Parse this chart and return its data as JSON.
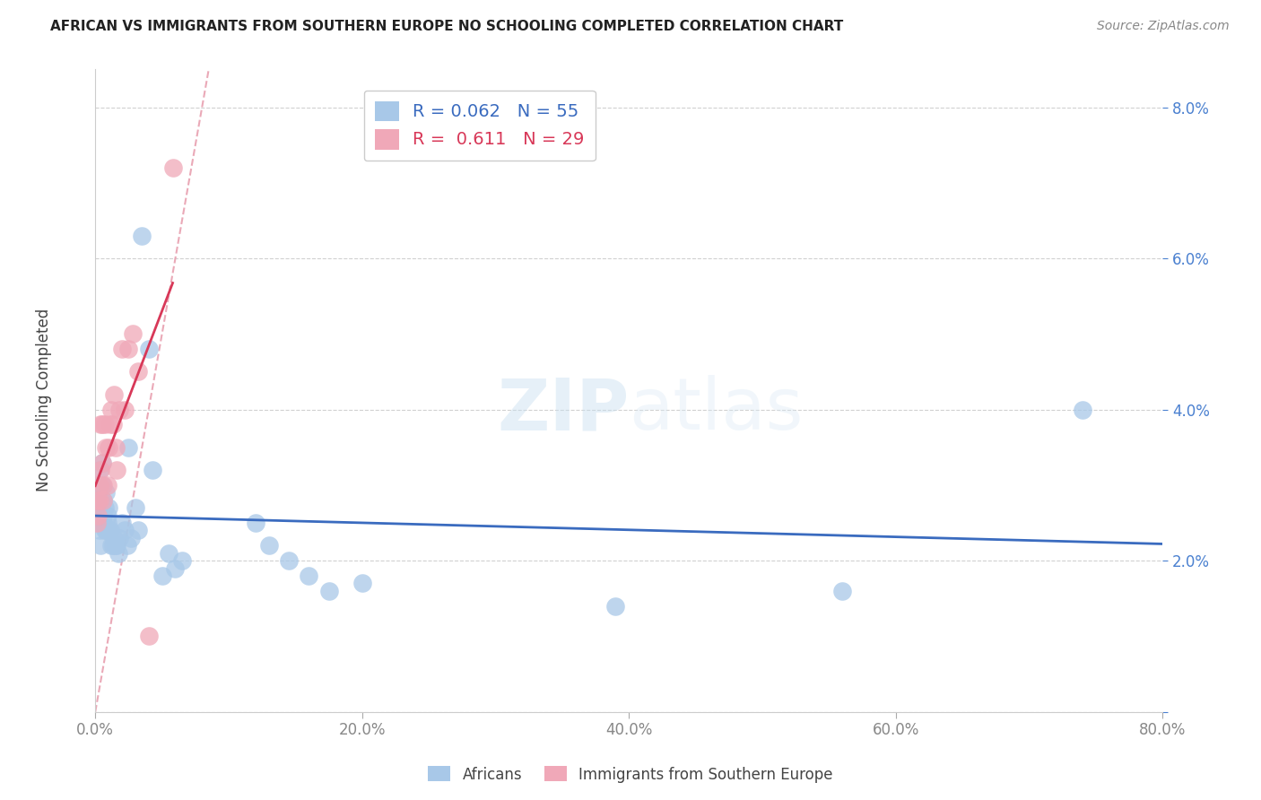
{
  "title": "AFRICAN VS IMMIGRANTS FROM SOUTHERN EUROPE NO SCHOOLING COMPLETED CORRELATION CHART",
  "source": "Source: ZipAtlas.com",
  "ylabel": "No Schooling Completed",
  "xlim": [
    0,
    0.8
  ],
  "ylim": [
    0,
    0.085
  ],
  "yticks": [
    0,
    0.02,
    0.04,
    0.06,
    0.08
  ],
  "xticks": [
    0,
    0.2,
    0.4,
    0.6,
    0.8
  ],
  "watermark": "ZIPatlas",
  "blue_color": "#a8c8e8",
  "pink_color": "#f0a8b8",
  "blue_line_color": "#3a6bbf",
  "pink_line_color": "#d83858",
  "diag_color": "#e8a0b0",
  "tick_color_y": "#4a80d0",
  "tick_color_x": "#888888",
  "africans_x": [
    0.001,
    0.002,
    0.002,
    0.003,
    0.003,
    0.003,
    0.004,
    0.004,
    0.004,
    0.005,
    0.005,
    0.005,
    0.005,
    0.006,
    0.006,
    0.006,
    0.007,
    0.007,
    0.008,
    0.008,
    0.009,
    0.009,
    0.01,
    0.01,
    0.011,
    0.012,
    0.013,
    0.014,
    0.015,
    0.016,
    0.017,
    0.018,
    0.02,
    0.022,
    0.024,
    0.025,
    0.027,
    0.03,
    0.032,
    0.035,
    0.04,
    0.043,
    0.05,
    0.055,
    0.06,
    0.065,
    0.12,
    0.13,
    0.145,
    0.16,
    0.175,
    0.2,
    0.39,
    0.56,
    0.74
  ],
  "africans_y": [
    0.027,
    0.026,
    0.03,
    0.028,
    0.024,
    0.032,
    0.025,
    0.027,
    0.022,
    0.028,
    0.026,
    0.03,
    0.033,
    0.025,
    0.028,
    0.026,
    0.024,
    0.027,
    0.024,
    0.029,
    0.025,
    0.026,
    0.027,
    0.024,
    0.024,
    0.022,
    0.022,
    0.023,
    0.022,
    0.022,
    0.021,
    0.023,
    0.025,
    0.024,
    0.022,
    0.035,
    0.023,
    0.027,
    0.024,
    0.063,
    0.048,
    0.032,
    0.018,
    0.021,
    0.019,
    0.02,
    0.025,
    0.022,
    0.02,
    0.018,
    0.016,
    0.017,
    0.014,
    0.016,
    0.04
  ],
  "immigrants_x": [
    0.001,
    0.002,
    0.002,
    0.003,
    0.003,
    0.004,
    0.004,
    0.005,
    0.005,
    0.006,
    0.006,
    0.007,
    0.008,
    0.009,
    0.01,
    0.011,
    0.012,
    0.013,
    0.014,
    0.015,
    0.016,
    0.018,
    0.02,
    0.022,
    0.025,
    0.028,
    0.032,
    0.04,
    0.058
  ],
  "immigrants_y": [
    0.025,
    0.028,
    0.026,
    0.03,
    0.028,
    0.032,
    0.038,
    0.033,
    0.038,
    0.028,
    0.03,
    0.038,
    0.035,
    0.03,
    0.035,
    0.038,
    0.04,
    0.038,
    0.042,
    0.035,
    0.032,
    0.04,
    0.048,
    0.04,
    0.048,
    0.05,
    0.045,
    0.01,
    0.072
  ]
}
